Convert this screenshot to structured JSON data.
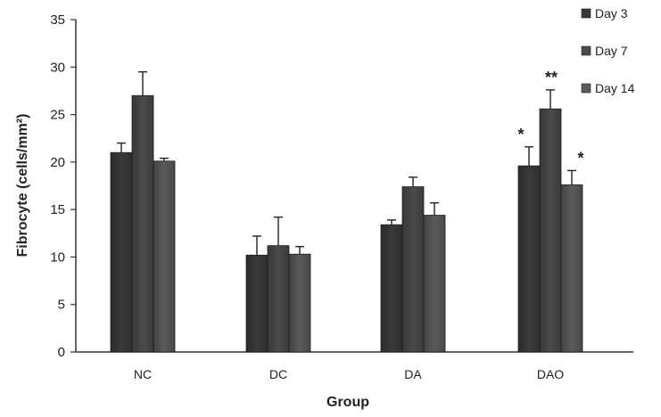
{
  "chart_data": {
    "type": "bar",
    "xlabel": "Group",
    "ylabel": "Fibrocyte (cells/mm²)",
    "ylim": [
      0,
      35
    ],
    "yticks": [
      0,
      5,
      10,
      15,
      20,
      25,
      30,
      35
    ],
    "grid": false,
    "legend_position": "top-right",
    "categories": [
      "NC",
      "DC",
      "DA",
      "DAO"
    ],
    "series": [
      {
        "name": "Day 3",
        "color": "#3a3a3a",
        "values": [
          21.0,
          10.2,
          13.4,
          19.6
        ],
        "errors": [
          1.0,
          2.0,
          0.5,
          2.0
        ],
        "significance": [
          "",
          "",
          "",
          "*"
        ]
      },
      {
        "name": "Day 7",
        "color": "#4a4a4a",
        "values": [
          27.0,
          11.2,
          17.4,
          25.6
        ],
        "errors": [
          2.5,
          3.0,
          1.0,
          2.0
        ],
        "significance": [
          "",
          "",
          "",
          "**"
        ]
      },
      {
        "name": "Day 14",
        "color": "#5a5a5a",
        "values": [
          20.1,
          10.3,
          14.4,
          17.6
        ],
        "errors": [
          0.3,
          0.8,
          1.3,
          1.5
        ],
        "significance": [
          "",
          "",
          "",
          "*"
        ]
      }
    ]
  }
}
